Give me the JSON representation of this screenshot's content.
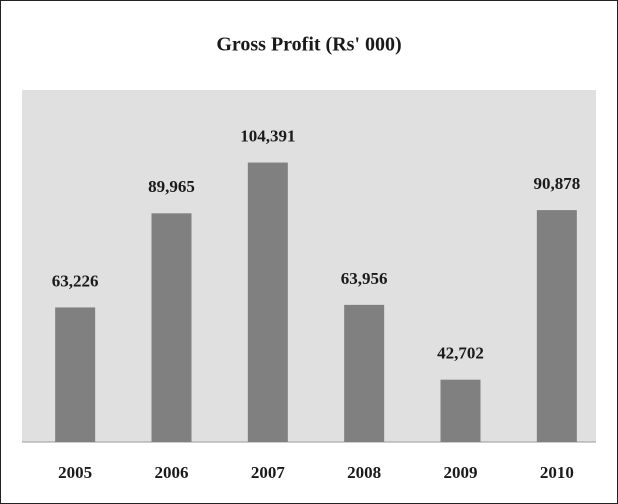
{
  "chart_data": {
    "type": "bar",
    "title": "Gross Profit (Rs' 000)",
    "categories": [
      "2005",
      "2006",
      "2007",
      "2008",
      "2009",
      "2010"
    ],
    "values": [
      63226,
      89965,
      104391,
      63956,
      42702,
      90878
    ],
    "value_labels": [
      "63,226",
      "89,965",
      "104,391",
      "63,956",
      "42,702",
      "90,878"
    ],
    "color": "#808080",
    "ylim": [
      25000,
      125000
    ]
  }
}
